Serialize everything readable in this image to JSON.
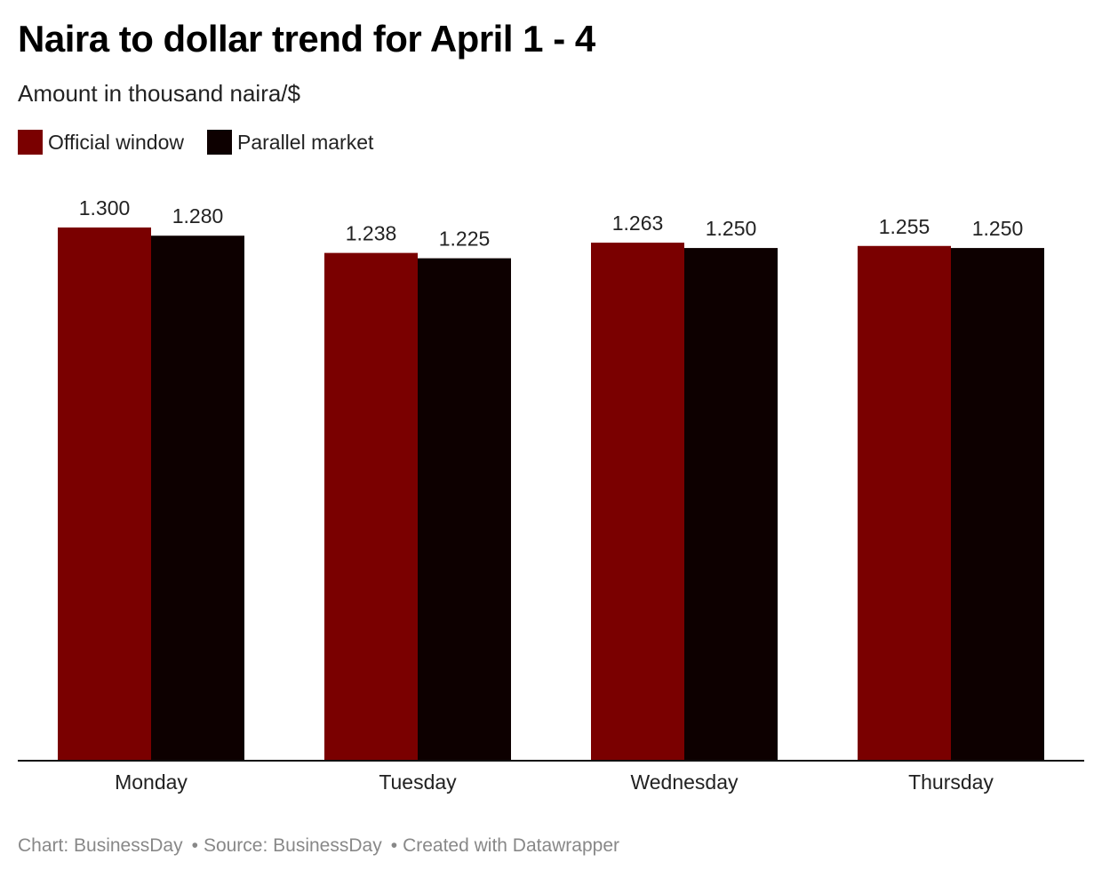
{
  "title": "Naira to dollar trend for April 1 - 4",
  "subtitle": "Amount in thousand naira/$",
  "legend": [
    {
      "label": "Official window",
      "color": "#7a0000"
    },
    {
      "label": "Parallel market",
      "color": "#0d0000"
    }
  ],
  "footer": {
    "chart": "Chart: BusinessDay",
    "source": "Source: BusinessDay",
    "created": "Created with Datawrapper",
    "separator": "•"
  },
  "chart_data": {
    "type": "bar",
    "categories": [
      "Monday",
      "Tuesday",
      "Wednesday",
      "Thursday"
    ],
    "series": [
      {
        "name": "Official window",
        "color": "#7a0000",
        "values": [
          1.3,
          1.238,
          1.263,
          1.255
        ],
        "labels": [
          "1.300",
          "1.238",
          "1.263",
          "1.255"
        ]
      },
      {
        "name": "Parallel market",
        "color": "#0d0000",
        "values": [
          1.28,
          1.225,
          1.25,
          1.25
        ],
        "labels": [
          "1.280",
          "1.225",
          "1.250",
          "1.250"
        ]
      }
    ],
    "title": "Naira to dollar trend for April 1 - 4",
    "subtitle": "Amount in thousand naira/$",
    "xlabel": "",
    "ylabel": "",
    "ylim": [
      0,
      1.3
    ],
    "grid": false,
    "legend_position": "top-left"
  }
}
